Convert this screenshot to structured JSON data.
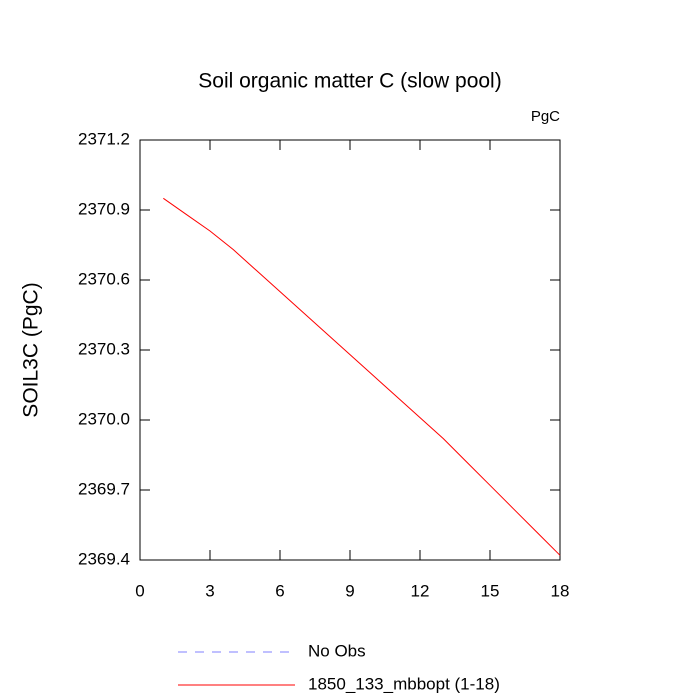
{
  "chart_data": {
    "type": "line",
    "title": "Soil organic matter C (slow pool)",
    "units": "PgC",
    "y_label": "SOIL3C  (PgC)",
    "x": [
      1,
      2,
      3,
      4,
      5,
      6,
      7,
      8,
      9,
      10,
      11,
      12,
      13,
      14,
      15,
      16,
      17,
      18
    ],
    "series": [
      {
        "name": "1850_133_mbbopt (1-18)",
        "color": "#ff0000",
        "values": [
          2370.95,
          2370.88,
          2370.81,
          2370.73,
          2370.64,
          2370.55,
          2370.46,
          2370.37,
          2370.28,
          2370.19,
          2370.1,
          2370.01,
          2369.92,
          2369.82,
          2369.72,
          2369.62,
          2369.52,
          2369.42
        ]
      }
    ],
    "legend_extra": [
      {
        "name": "No Obs",
        "color": "#8080ff",
        "dashed": true
      }
    ],
    "xlim": [
      0,
      18
    ],
    "xticks": [
      0,
      3,
      6,
      9,
      12,
      15,
      18
    ],
    "ylim": [
      2369.4,
      2371.2
    ],
    "yticks": [
      2369.4,
      2369.7,
      {
        "value": 2370.0,
        "label": "2370.0"
      },
      2370.3,
      2370.6,
      2370.9,
      2371.2
    ]
  }
}
